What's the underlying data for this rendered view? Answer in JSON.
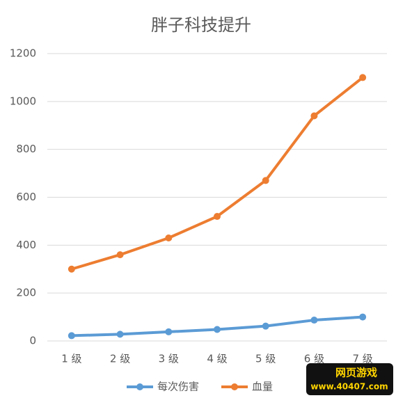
{
  "chart_data": {
    "type": "line",
    "title": "胖子科技提升",
    "categories": [
      "1 级",
      "2 级",
      "3 级",
      "4 级",
      "5 级",
      "6 级",
      "7 级"
    ],
    "series": [
      {
        "name": "每次伤害",
        "color": "#5b9bd5",
        "values": [
          22,
          28,
          38,
          48,
          62,
          87,
          100
        ]
      },
      {
        "name": "血量",
        "color": "#ed7d31",
        "values": [
          300,
          360,
          430,
          520,
          670,
          940,
          1100
        ]
      }
    ],
    "ylim": [
      0,
      1200
    ],
    "yticks": [
      0,
      200,
      400,
      600,
      800,
      1000,
      1200
    ],
    "grid": true,
    "legend": "bottom"
  },
  "watermark": {
    "title": "网页游戏",
    "url": "www.40407.com"
  }
}
